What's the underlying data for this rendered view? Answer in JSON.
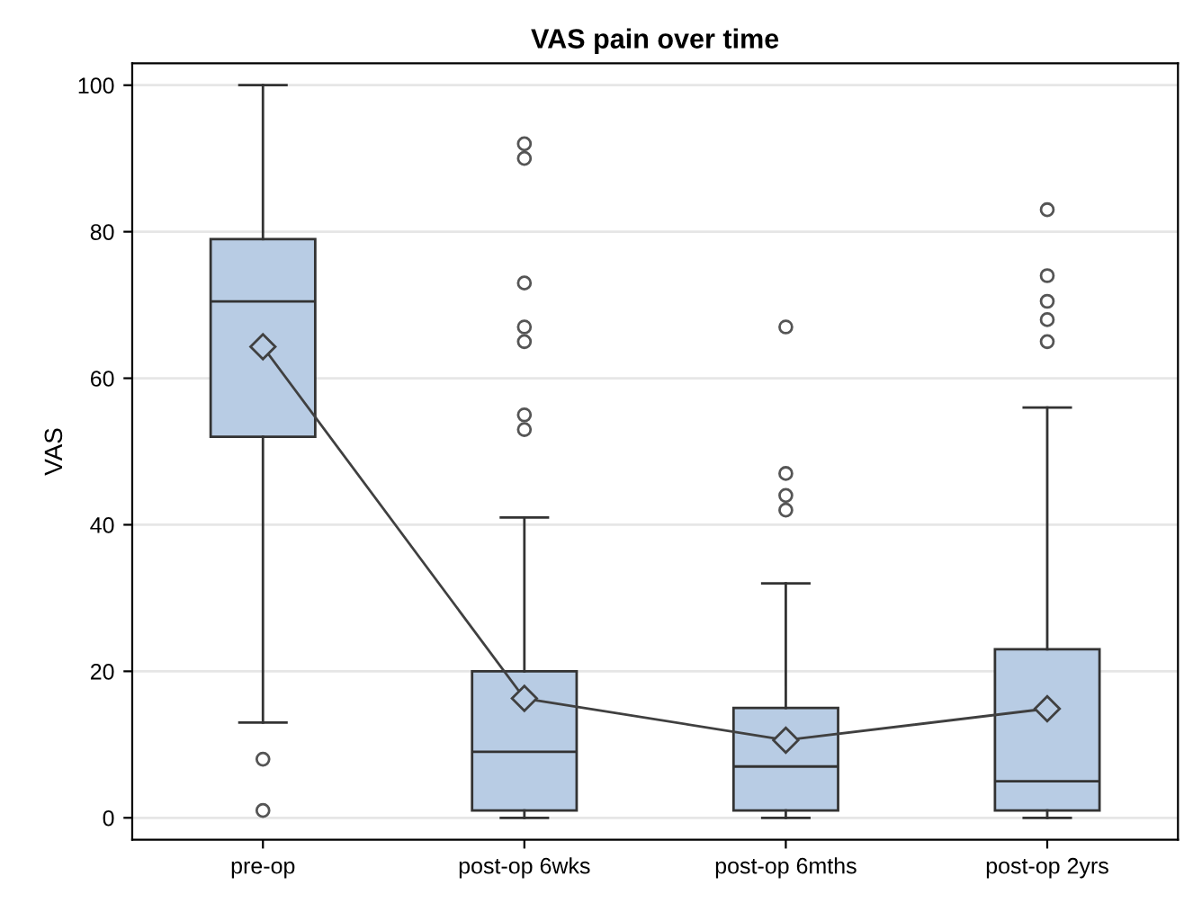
{
  "chart_data": {
    "type": "box",
    "title": "VAS pain over time",
    "ylabel": "VAS",
    "categories": [
      "pre-op",
      "post-op 6wks",
      "post-op 6mths",
      "post-op 2yrs"
    ],
    "color": "#b8cce4",
    "boxes": [
      {
        "low": 13,
        "q1": 52,
        "median": 70.5,
        "q3": 79,
        "high": 100,
        "outliers": [
          8,
          1
        ]
      },
      {
        "low": 0,
        "q1": 1,
        "median": 9,
        "q3": 20,
        "high": 41,
        "outliers": [
          92,
          90,
          73,
          67,
          65,
          55,
          53
        ]
      },
      {
        "low": 0,
        "q1": 1,
        "median": 7,
        "q3": 15,
        "high": 32,
        "outliers": [
          67,
          47,
          44,
          42
        ]
      },
      {
        "low": 0,
        "q1": 1,
        "median": 5,
        "q3": 23,
        "high": 56,
        "outliers": [
          83,
          74,
          70.5,
          68,
          65
        ]
      }
    ],
    "series": [
      {
        "type": "line",
        "color": "#404040",
        "marker": "diamond",
        "values": [
          64.3,
          16.3,
          10.6,
          14.9
        ]
      }
    ],
    "ylim": [
      -3,
      103
    ],
    "yticks": [
      0,
      20,
      40,
      60,
      80,
      100
    ],
    "grid": "y",
    "legend": false
  }
}
